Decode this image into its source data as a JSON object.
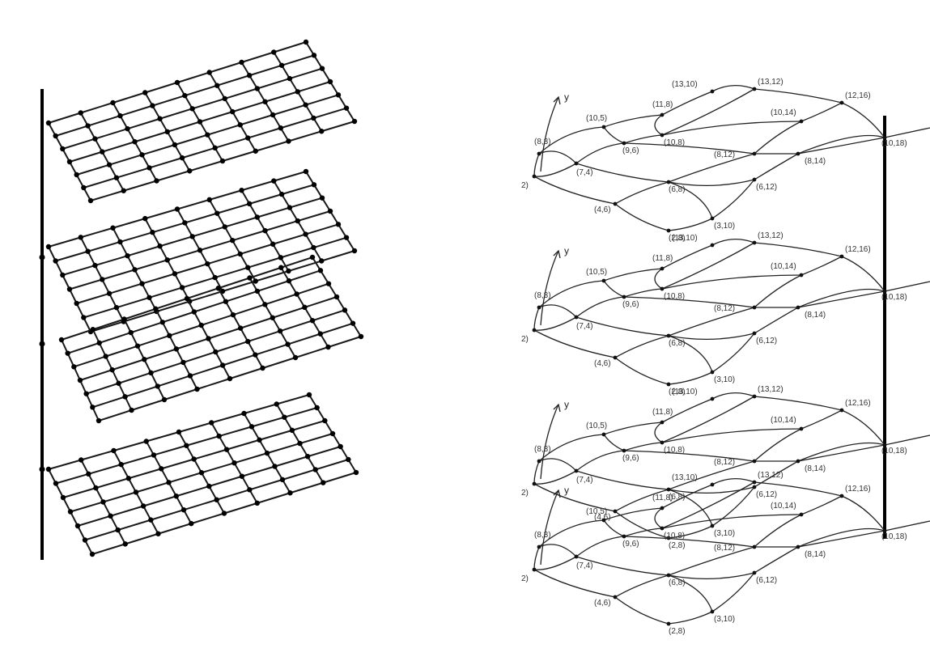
{
  "colors": {
    "ink": "#000000",
    "background": "#ffffff"
  },
  "left_figure": {
    "layer_count": 4,
    "rows": 6,
    "columns": 8
  },
  "right_figure": {
    "axis_label": "y",
    "nodes": [
      {
        "id": "a",
        "label": "(8,3)"
      },
      {
        "id": "b",
        "label": "2)"
      },
      {
        "id": "c",
        "label": "(7,4)"
      },
      {
        "id": "d",
        "label": "(10,5)"
      },
      {
        "id": "e",
        "label": "(9,6)"
      },
      {
        "id": "f",
        "label": "(11,8)"
      },
      {
        "id": "g",
        "label": "(10,8)"
      },
      {
        "id": "h",
        "label": "(13,10)"
      },
      {
        "id": "i",
        "label": "(13,12)"
      },
      {
        "id": "j",
        "label": "(10,14)"
      },
      {
        "id": "k",
        "label": "(8,12)"
      },
      {
        "id": "l",
        "label": "(6,8)"
      },
      {
        "id": "m",
        "label": "(4,6)"
      },
      {
        "id": "n",
        "label": "(2,8)"
      },
      {
        "id": "o",
        "label": "(3,10)"
      },
      {
        "id": "p",
        "label": "(6,12)"
      },
      {
        "id": "q",
        "label": "(8,14)"
      },
      {
        "id": "r",
        "label": "(12,16)"
      },
      {
        "id": "s",
        "label": "(10,18)"
      }
    ],
    "layers": [
      {
        "id": "layer-1"
      },
      {
        "id": "layer-2"
      },
      {
        "id": "layer-3"
      },
      {
        "id": "layer-4"
      }
    ]
  }
}
